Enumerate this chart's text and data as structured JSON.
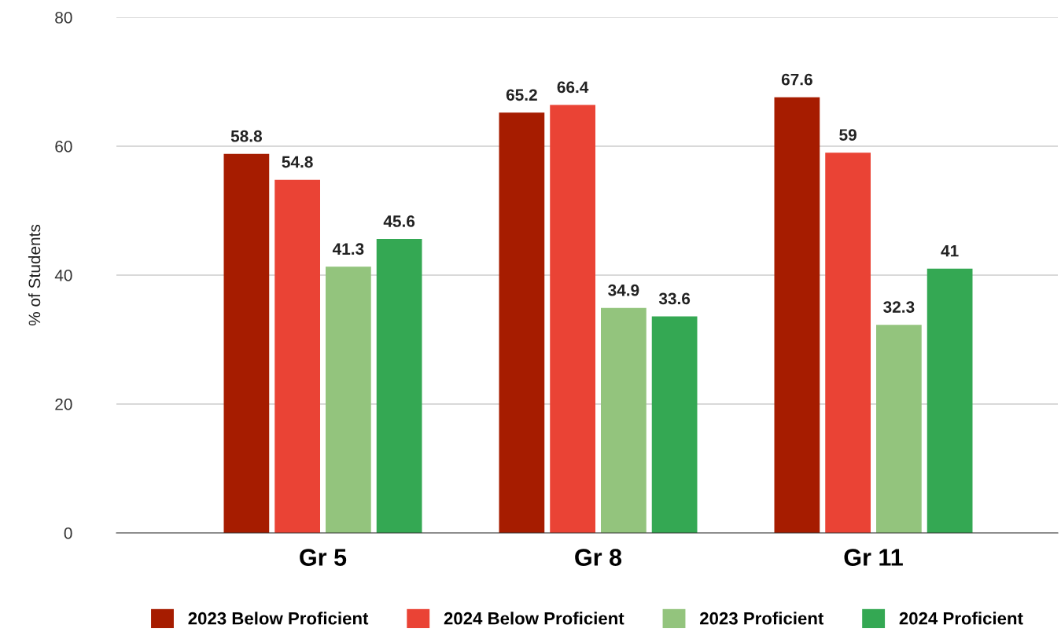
{
  "chart_data": {
    "type": "bar",
    "ylabel": "% of Students",
    "categories": [
      "Gr 5",
      "Gr 8",
      "Gr 11"
    ],
    "series": [
      {
        "name": "2023 Below Proficient",
        "color": "#a61c00",
        "values": [
          58.8,
          65.2,
          67.6
        ]
      },
      {
        "name": "2024 Below Proficient",
        "color": "#ea4335",
        "values": [
          54.8,
          66.4,
          59
        ]
      },
      {
        "name": "2023 Proficient",
        "color": "#93c47d",
        "values": [
          41.3,
          34.9,
          32.3
        ]
      },
      {
        "name": "2024 Proficient",
        "color": "#34a853",
        "values": [
          45.6,
          33.6,
          41
        ]
      }
    ],
    "ylim": [
      0,
      80
    ],
    "yticks": [
      0,
      20,
      40,
      60,
      80
    ],
    "grid": "y",
    "legend": "bottom",
    "data_labels": true
  }
}
